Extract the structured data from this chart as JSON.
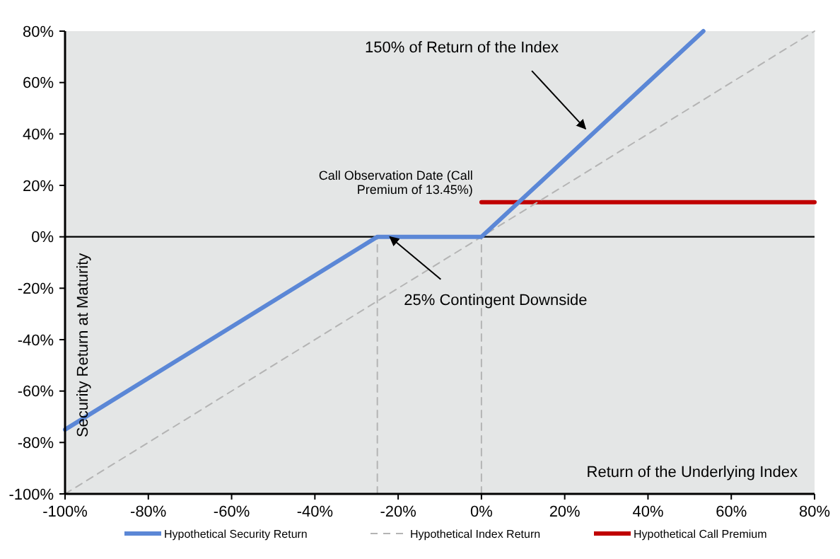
{
  "chart_data": {
    "type": "line",
    "xlabel": "Return of the Underlying Index",
    "ylabel": "Security Return at Maturity",
    "xlim": [
      -100,
      80
    ],
    "ylim": [
      -100,
      80
    ],
    "xticks": [
      {
        "value": -100,
        "label": "-100%"
      },
      {
        "value": -80,
        "label": "-80%"
      },
      {
        "value": -60,
        "label": "-60%"
      },
      {
        "value": -40,
        "label": "-40%"
      },
      {
        "value": -20,
        "label": "-20%"
      },
      {
        "value": 0,
        "label": "0%"
      },
      {
        "value": 20,
        "label": "20%"
      },
      {
        "value": 40,
        "label": "40%"
      },
      {
        "value": 60,
        "label": "60%"
      },
      {
        "value": 80,
        "label": "80%"
      }
    ],
    "yticks": [
      {
        "value": -100,
        "label": "-100%"
      },
      {
        "value": -80,
        "label": "-80%"
      },
      {
        "value": -60,
        "label": "-60%"
      },
      {
        "value": -40,
        "label": "-40%"
      },
      {
        "value": -20,
        "label": "-20%"
      },
      {
        "value": 0,
        "label": "0%"
      },
      {
        "value": 20,
        "label": "20%"
      },
      {
        "value": 40,
        "label": "40%"
      },
      {
        "value": 60,
        "label": "60%"
      },
      {
        "value": 80,
        "label": "80%"
      }
    ],
    "series": [
      {
        "name": "Hypothetical Security Return",
        "color": "#5b87d6",
        "x": [
          -100,
          -25,
          0,
          53.3
        ],
        "values": [
          -75,
          0,
          0,
          80
        ],
        "line_style": "solid"
      },
      {
        "name": "Hypothetical Index Return",
        "color": "#b4b4b4",
        "x": [
          -100,
          80
        ],
        "values": [
          -100,
          80
        ],
        "line_style": "dashed"
      },
      {
        "name": "Hypothetical Call Premium",
        "color": "#c00000",
        "x": [
          0,
          80
        ],
        "values": [
          13.45,
          13.45
        ],
        "line_style": "solid"
      },
      {
        "color": "#b4b4b4",
        "x": [
          -25,
          -25
        ],
        "values": [
          -100,
          0
        ],
        "line_style": "dashed"
      },
      {
        "color": "#b4b4b4",
        "x": [
          0,
          0
        ],
        "values": [
          -100,
          0
        ],
        "line_style": "dashed"
      }
    ],
    "ref_lines": [
      {
        "axis": "y",
        "value": 0,
        "color": "#000000"
      }
    ],
    "annotations": [
      {
        "text": "150% of  Return of the Index",
        "x": 25,
        "y": 42
      },
      {
        "text": "25% Contingent Downside",
        "x": -22,
        "y": 0
      },
      {
        "text": "Call Observation Date (Call\nPremium of 13.45%)",
        "x": 0,
        "y": 13.45
      }
    ],
    "grid": false,
    "legend": "bottom"
  }
}
